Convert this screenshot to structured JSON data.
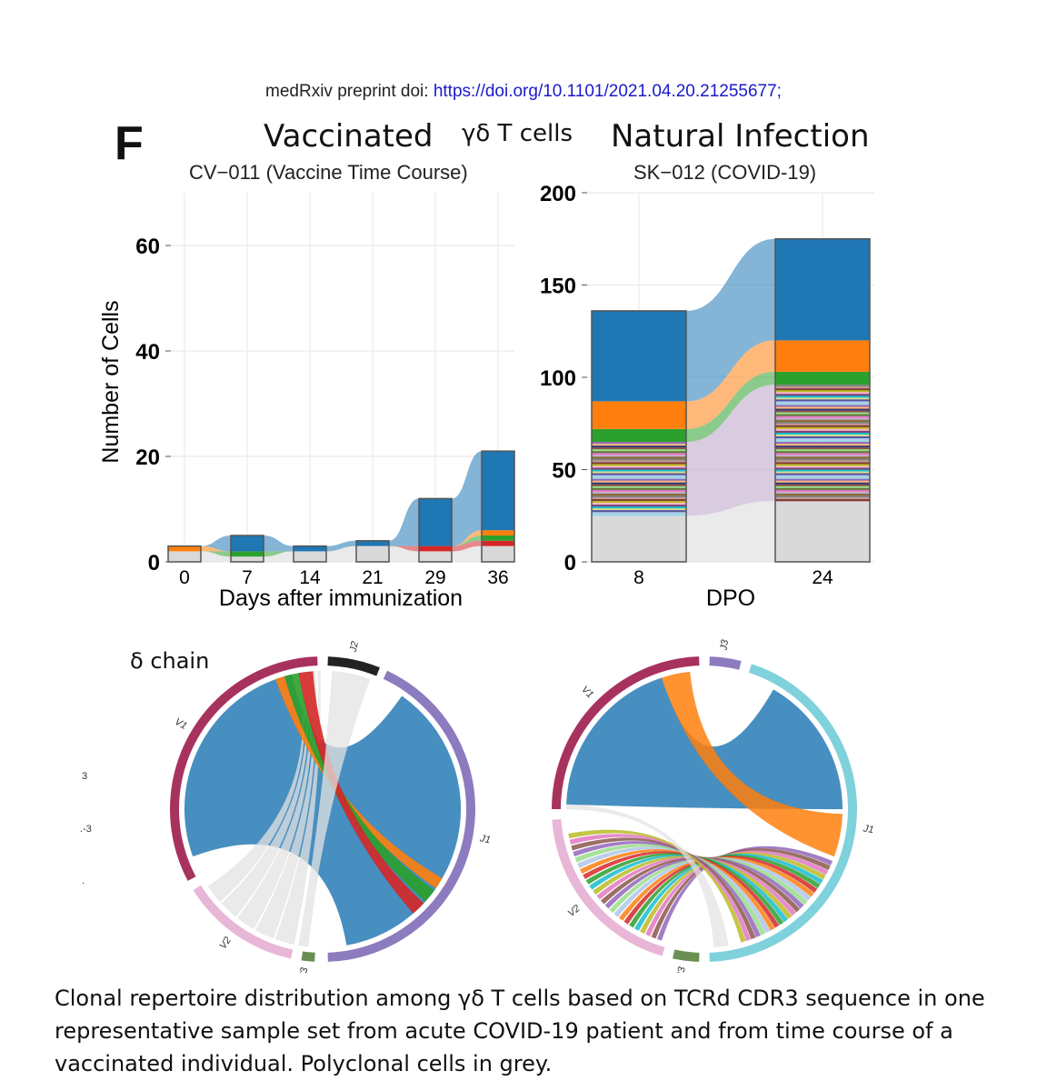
{
  "doi": {
    "prefix": "medRxiv preprint doi: ",
    "link": "https://doi.org/10.1101/2021.04.20.21255677;"
  },
  "panel_letter": "F",
  "titles": {
    "vaccinated": "Vaccinated",
    "cell_type": "γδ T cells",
    "natural": "Natural Infection"
  },
  "subtitles": {
    "left": "CV−011 (Vaccine Time Course)",
    "right": "SK−012 (COVID-19)"
  },
  "delta_label": "δ chain",
  "stray_marks": [
    "3",
    ".-3",
    "."
  ],
  "caption": "Clonal repertoire distribution among γδ T cells based on TCRd CDR3 sequence in one representative sample set from acute COVID-19 patient and from time course of a vaccinated individual. Polyclonal cells in grey.",
  "colors": {
    "expanded": "#1f77b4",
    "polyclonal": "#d9d9d9",
    "orange": "#ff7f0e",
    "green": "#2ca02c",
    "red": "#d62728"
  },
  "chart_data": [
    {
      "type": "bar",
      "title": "CV−011 (Vaccine Time Course)",
      "xlabel": "Days after immunization",
      "ylabel": "Number of Cells",
      "categories": [
        "0",
        "7",
        "14",
        "21",
        "29",
        "36"
      ],
      "ylim": [
        0,
        70
      ],
      "yticks": [
        "0",
        "20",
        "40",
        "60"
      ],
      "series": [
        {
          "name": "Polyclonal",
          "color": "#d9d9d9",
          "values": [
            2,
            1,
            2,
            3,
            2,
            3
          ]
        },
        {
          "name": "Red clone",
          "color": "#d62728",
          "values": [
            0,
            0,
            0,
            0,
            1,
            1
          ]
        },
        {
          "name": "Green clone",
          "color": "#2ca02c",
          "values": [
            0,
            1,
            0,
            0,
            0,
            1
          ]
        },
        {
          "name": "Orange clone",
          "color": "#ff7f0e",
          "values": [
            1,
            0,
            0,
            0,
            0,
            1
          ]
        },
        {
          "name": "Blue clone",
          "color": "#1f77b4",
          "values": [
            0,
            3,
            1,
            1,
            9,
            15
          ]
        }
      ],
      "totals": [
        3,
        5,
        3,
        4,
        12,
        21
      ]
    },
    {
      "type": "bar",
      "title": "SK−012 (COVID-19)",
      "xlabel": "DPO",
      "ylabel": "Number of Cells",
      "categories": [
        "8",
        "24"
      ],
      "ylim": [
        0,
        200
      ],
      "yticks": [
        "0",
        "50",
        "100",
        "150",
        "200"
      ],
      "series": [
        {
          "name": "Polyclonal",
          "color": "#d9d9d9",
          "values": [
            25,
            33
          ]
        },
        {
          "name": "Minor clones",
          "color": "mixed",
          "values": [
            40,
            63
          ]
        },
        {
          "name": "Green clone",
          "color": "#2ca02c",
          "values": [
            7,
            7
          ]
        },
        {
          "name": "Orange clone",
          "color": "#ff7f0e",
          "values": [
            15,
            17
          ]
        },
        {
          "name": "Blue clone",
          "color": "#1f77b4",
          "values": [
            49,
            55
          ]
        }
      ],
      "totals": [
        136,
        175
      ]
    },
    {
      "type": "chord",
      "title": "δ chain (vaccinated)",
      "segments": [
        "V1",
        "J2",
        "J1",
        "V3",
        "V2"
      ]
    },
    {
      "type": "chord",
      "title": "δ chain (natural infection)",
      "segments": [
        "V1",
        "J3",
        "J1",
        "V3",
        "V2"
      ]
    }
  ]
}
